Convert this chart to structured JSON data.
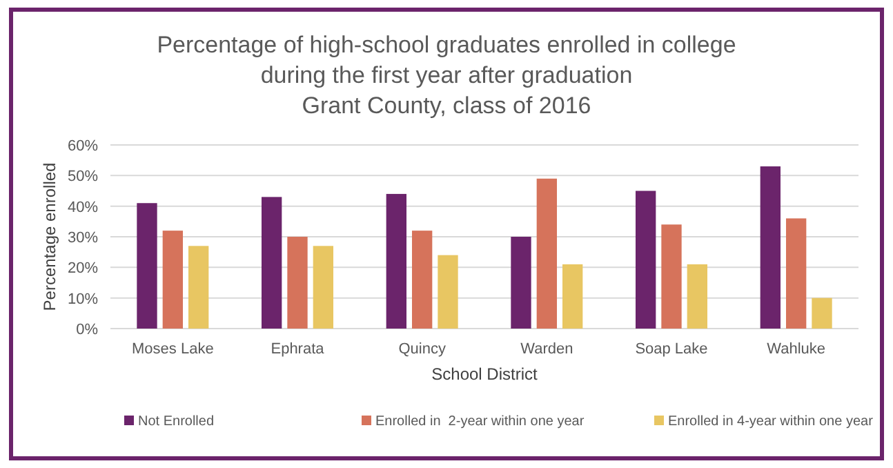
{
  "chart_data": {
    "type": "bar",
    "title": "Percentage of high-school graduates enrolled in college\nduring the first year after graduation\nGrant County, class of 2016",
    "xlabel": "School District",
    "ylabel": "Percentage enrolled",
    "categories": [
      "Moses Lake",
      "Ephrata",
      "Quincy",
      "Warden",
      "Soap Lake",
      "Wahluke"
    ],
    "series": [
      {
        "name": "Not Enrolled",
        "color": "#6b246b",
        "values": [
          41,
          43,
          44,
          30,
          45,
          53
        ]
      },
      {
        "name": "Enrolled in  2-year within one year",
        "color": "#d6735b",
        "values": [
          32,
          30,
          32,
          49,
          34,
          36
        ]
      },
      {
        "name": "Enrolled in 4-year within one year",
        "color": "#e8c662",
        "values": [
          27,
          27,
          24,
          21,
          21,
          10
        ]
      }
    ],
    "ylim": [
      0,
      60
    ],
    "yticks": [
      {
        "value": 0,
        "label": "0%"
      },
      {
        "value": 10,
        "label": "10%"
      },
      {
        "value": 20,
        "label": "20%"
      },
      {
        "value": 30,
        "label": "30%"
      },
      {
        "value": 40,
        "label": "40%"
      },
      {
        "value": 50,
        "label": "50%"
      },
      {
        "value": 60,
        "label": "60%"
      }
    ],
    "grid": "y",
    "legend": "bottom"
  }
}
